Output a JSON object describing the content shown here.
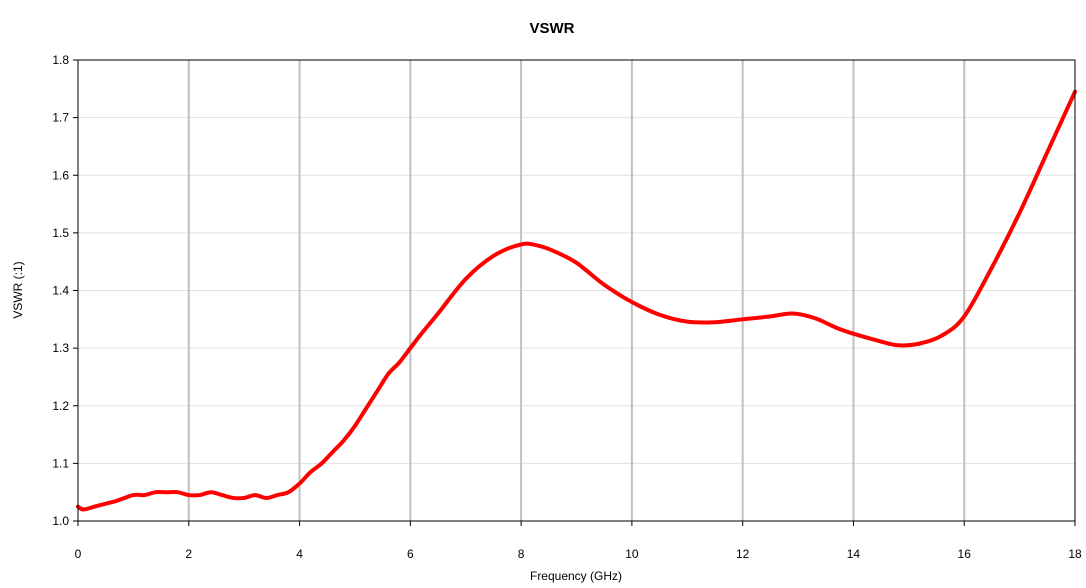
{
  "chart_data": {
    "type": "line",
    "title": "VSWR",
    "xlabel": "Frequency (GHz)",
    "ylabel": "VSWR (:1)",
    "xlim": [
      0,
      18
    ],
    "ylim": [
      1.0,
      1.8
    ],
    "xticks": [
      "0",
      "2",
      "4",
      "6",
      "8",
      "10",
      "12",
      "14",
      "16",
      "18"
    ],
    "yticks": [
      "1.0",
      "1.1",
      "1.2",
      "1.3",
      "1.4",
      "1.5",
      "1.6",
      "1.7",
      "1.8"
    ],
    "grid": {
      "x_major": true,
      "x_major_color": "#c0c0c0",
      "y_major": true,
      "y_major_color": "#e0e0e0"
    },
    "legend": "none",
    "series": [
      {
        "color": "#ff0000",
        "x": [
          0,
          0.1,
          0.3,
          0.5,
          0.7,
          1.0,
          1.2,
          1.4,
          1.6,
          1.8,
          2.0,
          2.2,
          2.4,
          2.6,
          2.8,
          3.0,
          3.2,
          3.4,
          3.6,
          3.8,
          4.0,
          4.2,
          4.4,
          4.6,
          4.8,
          5.0,
          5.2,
          5.4,
          5.6,
          5.8,
          6.0,
          6.2,
          6.5,
          7.0,
          7.5,
          8.0,
          8.3,
          8.6,
          9.0,
          9.5,
          10.0,
          10.5,
          11.0,
          11.5,
          12.0,
          12.5,
          12.9,
          13.3,
          13.7,
          14.0,
          14.4,
          14.8,
          15.2,
          15.6,
          16.0,
          16.5,
          17.0,
          17.5,
          18.0
        ],
        "y": [
          1.025,
          1.02,
          1.025,
          1.03,
          1.035,
          1.045,
          1.045,
          1.05,
          1.05,
          1.05,
          1.045,
          1.045,
          1.05,
          1.045,
          1.04,
          1.04,
          1.045,
          1.04,
          1.045,
          1.05,
          1.065,
          1.085,
          1.1,
          1.12,
          1.14,
          1.165,
          1.195,
          1.225,
          1.255,
          1.275,
          1.3,
          1.325,
          1.36,
          1.42,
          1.46,
          1.48,
          1.478,
          1.468,
          1.448,
          1.41,
          1.38,
          1.358,
          1.346,
          1.345,
          1.35,
          1.355,
          1.36,
          1.352,
          1.335,
          1.325,
          1.314,
          1.305,
          1.308,
          1.322,
          1.355,
          1.44,
          1.535,
          1.64,
          1.745
        ]
      }
    ]
  }
}
